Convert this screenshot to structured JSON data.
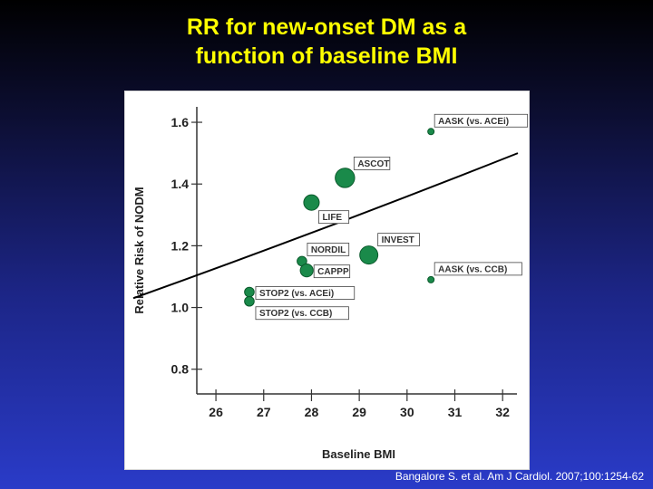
{
  "slide": {
    "title_line1": "RR for new-onset DM as a",
    "title_line2": "function of baseline BMI",
    "citation": "Bangalore S. et al. Am J Cardiol. 2007;100:1254-62"
  },
  "colors": {
    "title": "#ffff00",
    "point_fill": "#1a8a4a",
    "point_stroke": "#0b5a2c",
    "line": "#000000"
  },
  "chart_data": {
    "type": "scatter",
    "xlabel": "Baseline BMI",
    "ylabel": "Relative Risk of NODM",
    "xlim": [
      25.6,
      32.3
    ],
    "ylim": [
      0.72,
      1.65
    ],
    "xticks": [
      26,
      27,
      28,
      29,
      30,
      31,
      32
    ],
    "yticks": [
      0.8,
      1.0,
      1.2,
      1.4,
      1.6
    ],
    "ytick_labels": [
      "0.8",
      "1.0",
      "1.2",
      "1.4",
      "1.6"
    ],
    "grid": false,
    "trend_line": {
      "x": [
        25.6,
        32.4
      ],
      "y": [
        1.03,
        1.5
      ]
    },
    "points": [
      {
        "label": "AASK (vs. ACEi)",
        "x": 30.5,
        "y": 1.57,
        "size": 1
      },
      {
        "label": "ASCOT",
        "x": 28.7,
        "y": 1.42,
        "size": 3
      },
      {
        "label": "LIFE",
        "x": 28.0,
        "y": 1.34,
        "size": 2.4
      },
      {
        "label": "INVEST",
        "x": 29.2,
        "y": 1.17,
        "size": 2.8
      },
      {
        "label": "NORDIL",
        "x": 27.8,
        "y": 1.15,
        "size": 1.5
      },
      {
        "label": "CAPPP",
        "x": 27.9,
        "y": 1.12,
        "size": 2
      },
      {
        "label": "AASK (vs. CCB)",
        "x": 30.5,
        "y": 1.09,
        "size": 1
      },
      {
        "label": "STOP2 (vs. ACEi)",
        "x": 26.7,
        "y": 1.05,
        "size": 1.5
      },
      {
        "label": "STOP2 (vs. CCB)",
        "x": 26.7,
        "y": 1.02,
        "size": 1.5
      }
    ]
  }
}
